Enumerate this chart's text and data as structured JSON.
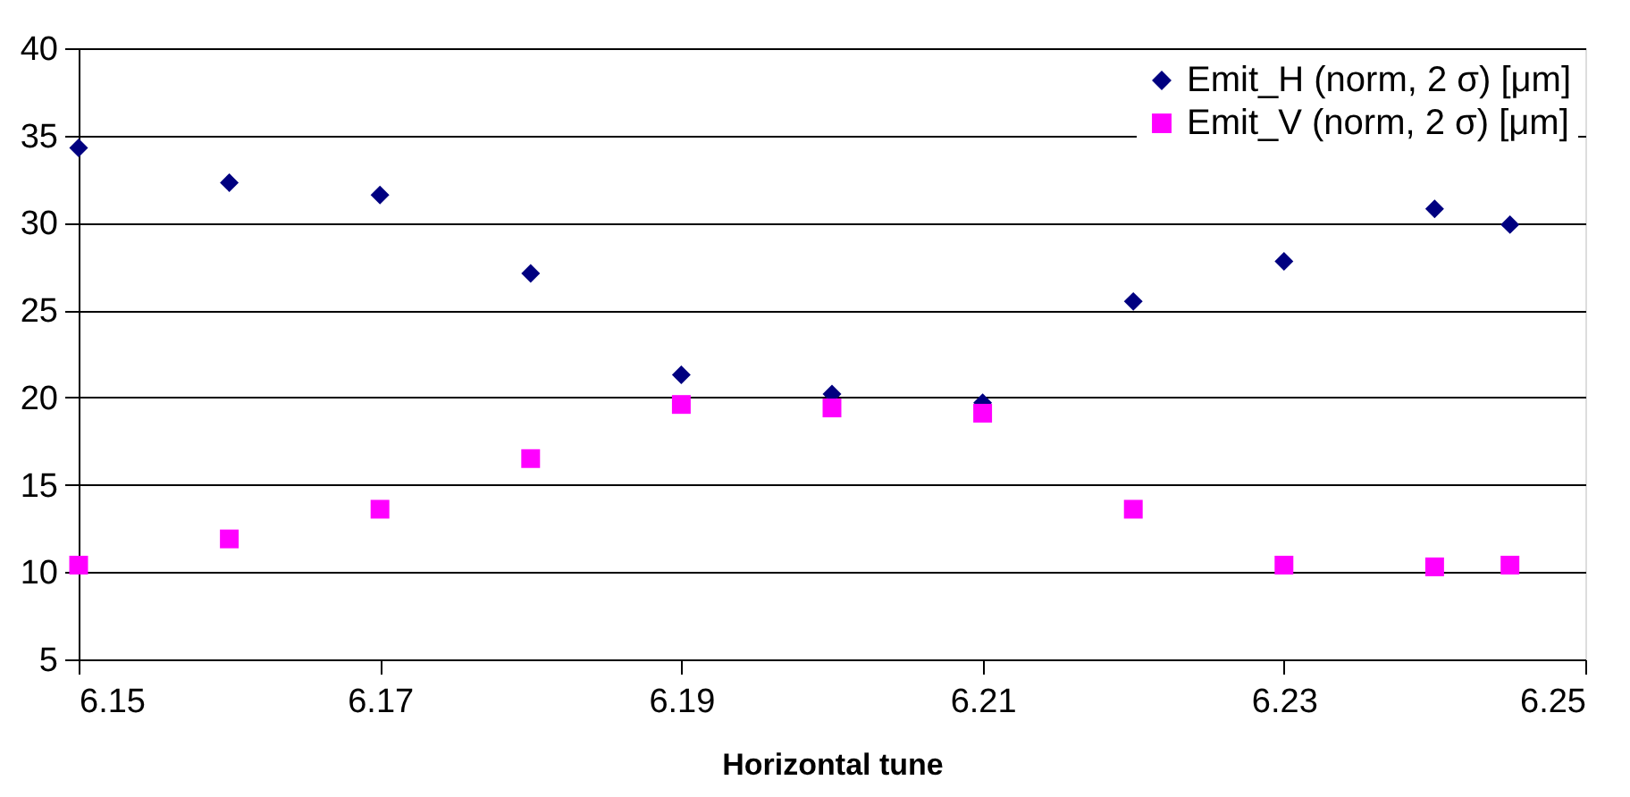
{
  "chart_data": {
    "type": "scatter",
    "xlabel": "Horizontal tune",
    "x": [
      6.15,
      6.16,
      6.17,
      6.18,
      6.19,
      6.2,
      6.21,
      6.22,
      6.23,
      6.24,
      6.245
    ],
    "series": [
      {
        "name": "Emit_H (norm, 2 σ) [μm]",
        "color": "#000080",
        "marker": "diamond",
        "values": [
          34.3,
          32.3,
          31.6,
          27.1,
          21.3,
          20.2,
          19.7,
          25.5,
          27.8,
          30.8,
          29.9
        ]
      },
      {
        "name": "Emit_V (norm, 2 σ) [μm]",
        "color": "#ff00ff",
        "marker": "square",
        "values": [
          10.4,
          11.9,
          13.6,
          16.5,
          19.6,
          19.4,
          19.1,
          13.6,
          10.4,
          10.3,
          10.4
        ]
      }
    ],
    "xlim": [
      6.15,
      6.25
    ],
    "xticks": [
      6.15,
      6.17,
      6.19,
      6.21,
      6.23,
      6.25
    ],
    "ylim": [
      5,
      40
    ],
    "yticks": [
      5,
      10,
      15,
      20,
      25,
      30,
      35,
      40
    ],
    "grid": "y",
    "legend": "top right"
  }
}
